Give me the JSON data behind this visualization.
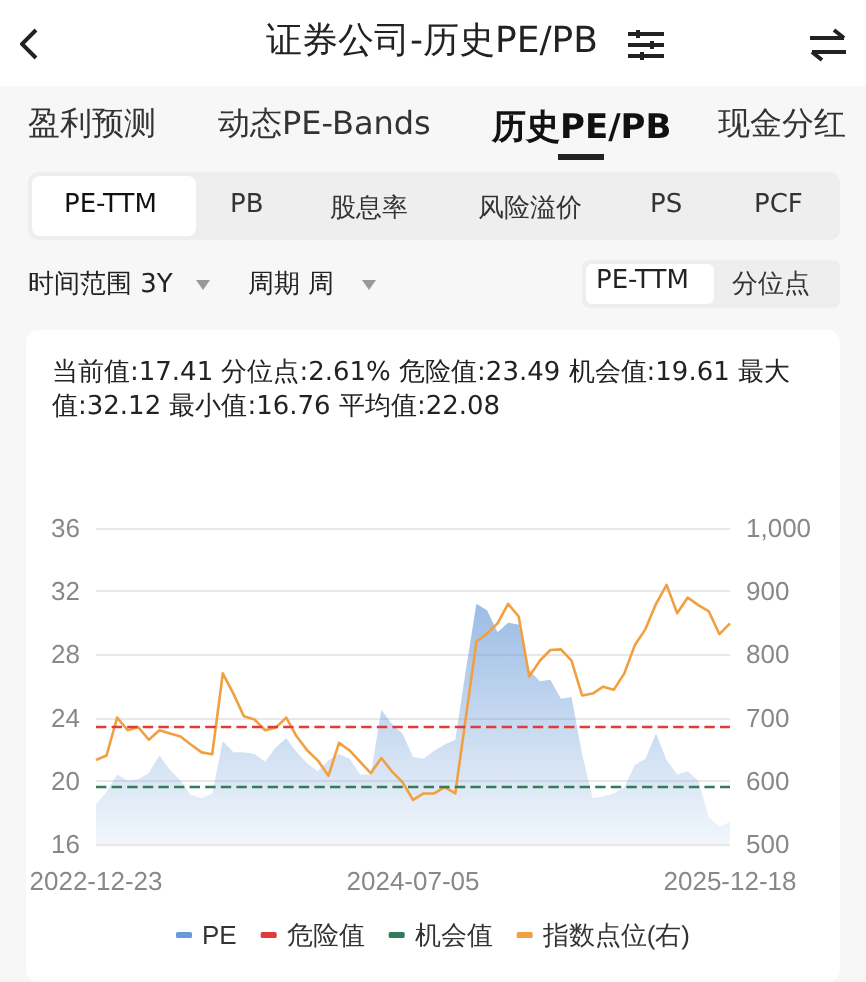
{
  "chart_data": {
    "type": "area",
    "title": "证券公司-历史PE/PB",
    "subtitle": "当前值:17.41 分位点:2.61% 危险值:23.49 机会值:19.61 最大值:32.12 最小值:16.76 平均值:22.08",
    "annotations": [
      "盈利预测",
      "动态PE-Bands",
      "历史PE/PB",
      "现金分红",
      "PE-TTM",
      "PB",
      "股息率",
      "风险溢价",
      "PS",
      "PCF",
      "时间范围 3Y",
      "周期 周",
      "PE-TTM",
      "分位点"
    ],
    "categories": [
      "2022-12-23",
      null,
      null,
      null,
      null,
      null,
      null,
      null,
      null,
      null,
      null,
      null,
      null,
      null,
      null,
      null,
      null,
      null,
      null,
      null,
      null,
      null,
      null,
      null,
      null,
      null,
      null,
      null,
      null,
      null,
      "2024-07-05",
      null,
      null,
      null,
      null,
      null,
      null,
      null,
      null,
      null,
      null,
      null,
      null,
      null,
      null,
      null,
      null,
      null,
      null,
      null,
      null,
      null,
      null,
      null,
      null,
      null,
      null,
      null,
      null,
      null,
      "2025-12-18"
    ],
    "series": [
      {
        "name": "PE",
        "color": "#6a9bd8",
        "values": [
          18.5,
          19.3,
          20.4,
          20.0,
          20.1,
          20.5,
          21.6,
          20.7,
          20.0,
          19.1,
          18.9,
          19.2,
          22.5,
          21.8,
          21.8,
          21.7,
          21.2,
          22.1,
          22.7,
          21.8,
          21.1,
          20.6,
          21.3,
          21.7,
          21.4,
          20.4,
          20.4,
          24.5,
          23.6,
          23.0,
          21.5,
          21.4,
          21.9,
          22.3,
          22.6,
          27.0,
          31.2,
          30.8,
          29.4,
          30.0,
          29.9,
          27.0,
          26.3,
          26.4,
          25.2,
          25.3,
          21.7,
          18.9,
          19.0,
          19.2,
          19.6,
          21.0,
          21.4,
          23.0,
          21.3,
          20.4,
          20.6,
          20.0,
          17.7,
          17.1,
          17.4
        ]
      },
      {
        "name": "指数点位(右)",
        "type": "line",
        "axis": "y2",
        "color": "#f0a040",
        "values": [
          633,
          640,
          700,
          680,
          685,
          665,
          680,
          675,
          670,
          657,
          645,
          642,
          770,
          738,
          702,
          697,
          680,
          684,
          700,
          670,
          648,
          632,
          608,
          660,
          648,
          630,
          612,
          636,
          615,
          598,
          570,
          580,
          580,
          590,
          580,
          700,
          820,
          833,
          849,
          880,
          860,
          765,
          790,
          807,
          808,
          790,
          735,
          738,
          749,
          744,
          770,
          815,
          840,
          880,
          910,
          865,
          890,
          878,
          868,
          832,
          849
        ]
      }
    ],
    "ref_lines": [
      {
        "axis": "y",
        "value": 23.49,
        "label": "危险值",
        "color": "#e03a3a",
        "line_style": "dashed"
      },
      {
        "axis": "y",
        "value": 19.61,
        "label": "机会值",
        "color": "#2f7d5a",
        "line_style": "dashed"
      }
    ],
    "ylim": [
      16,
      36
    ],
    "yticks": [
      16,
      20,
      24,
      28,
      32,
      36
    ],
    "y2lim": [
      500,
      1000
    ],
    "y2ticks": [
      500,
      600,
      700,
      800,
      900,
      {
        "value": 1000,
        "label": "1,000"
      }
    ],
    "grid": "y",
    "legend": "bottom",
    "marker": "none",
    "line_style": "solid"
  }
}
